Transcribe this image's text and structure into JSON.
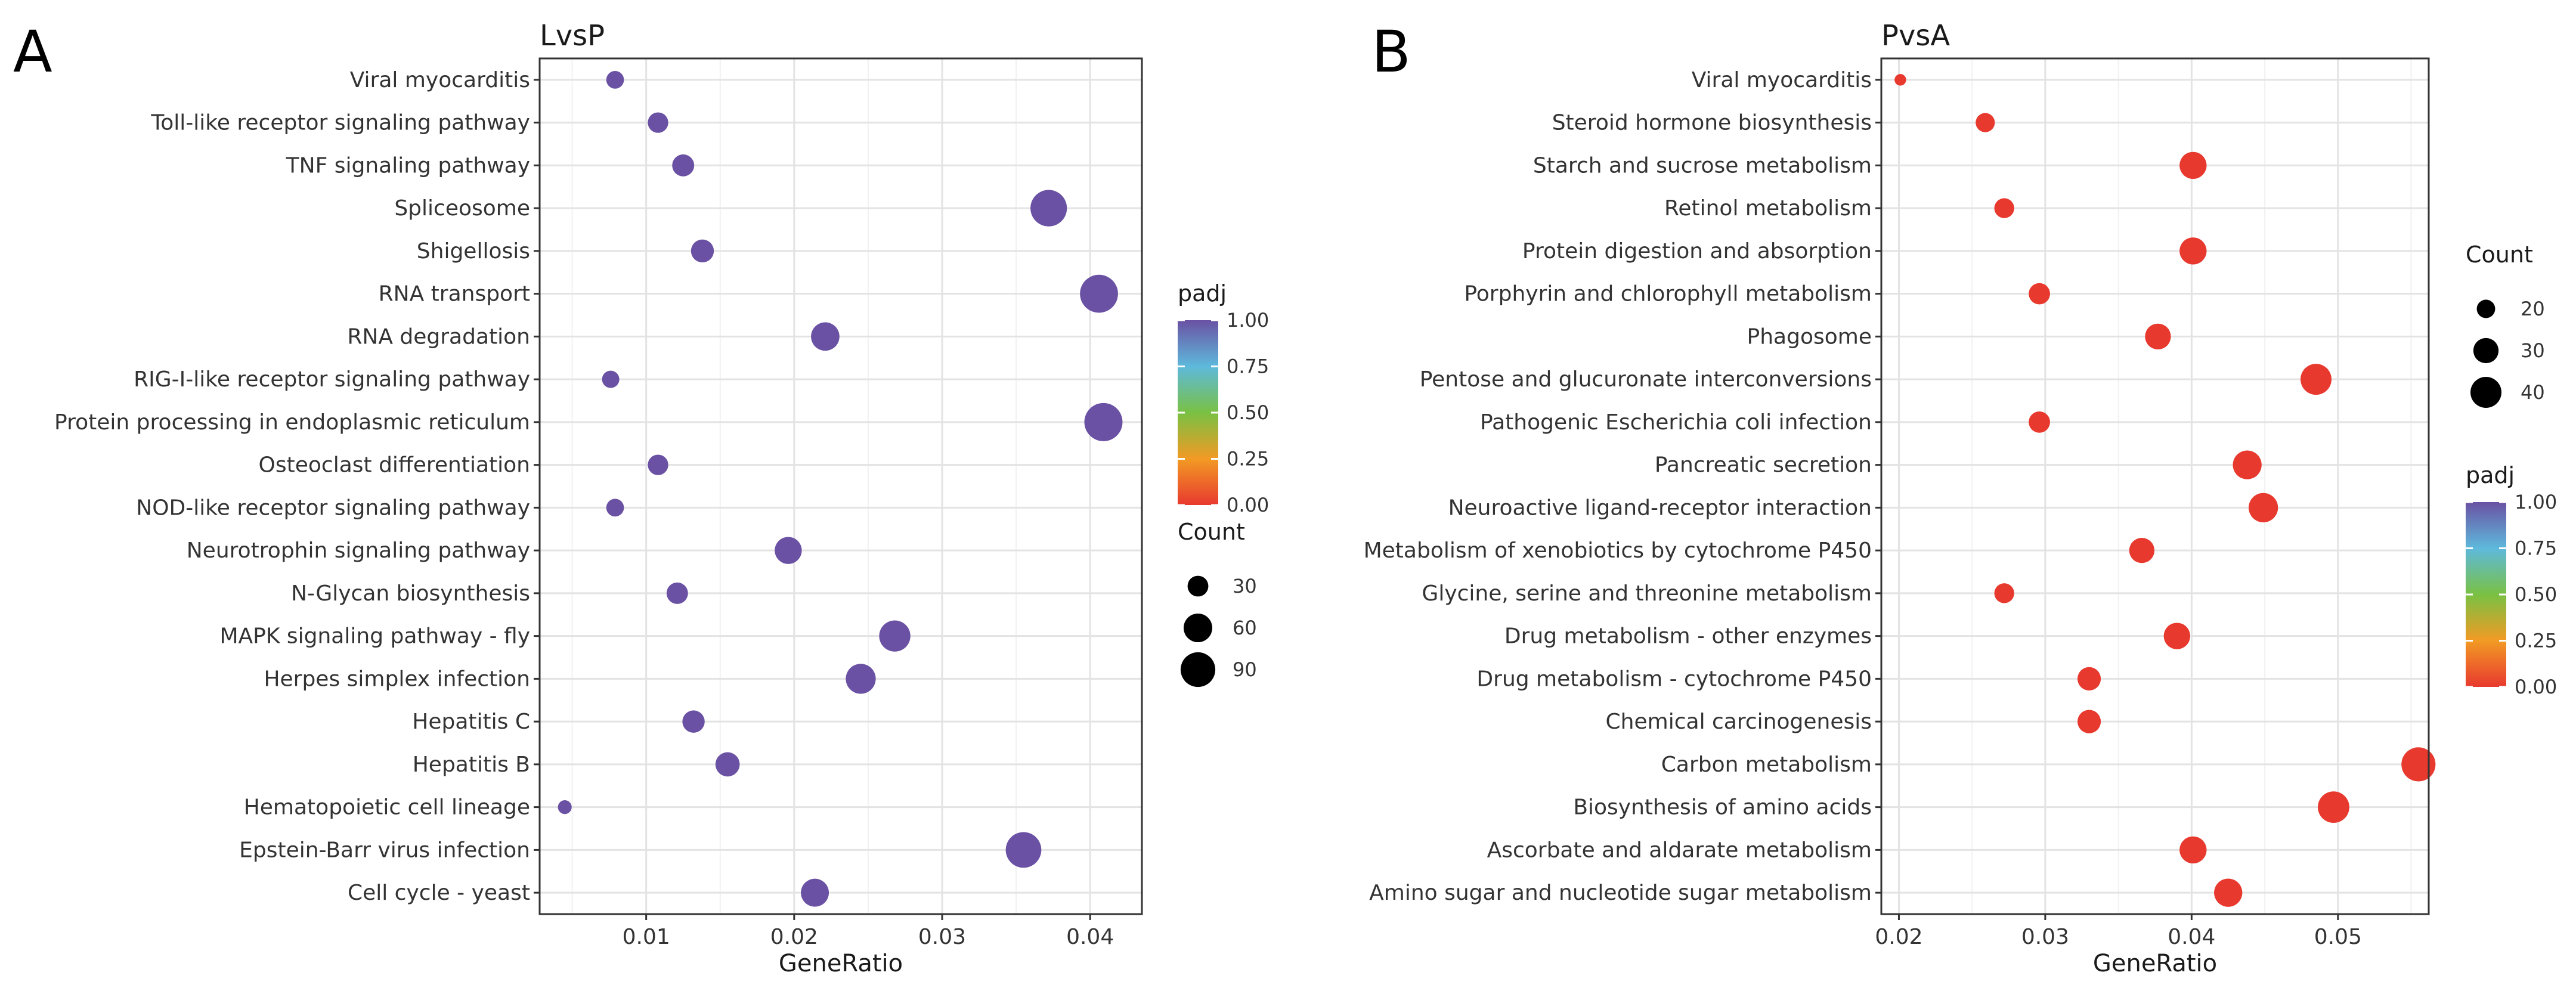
{
  "chart_data": [
    {
      "id": "A",
      "type": "scatter",
      "panel_label": "A",
      "title": "LvsP",
      "xlabel": "GeneRatio",
      "xlim": [
        0.0028,
        0.0435
      ],
      "xticks": [
        0.01,
        0.02,
        0.03,
        0.04
      ],
      "xtick_labels": [
        "0.01",
        "0.02",
        "0.03",
        "0.04"
      ],
      "categories": [
        "Viral myocarditis",
        "Toll-like receptor signaling pathway",
        "TNF signaling pathway",
        "Spliceosome",
        "Shigellosis",
        "RNA transport",
        "RNA degradation",
        "RIG-I-like receptor signaling pathway",
        "Protein processing in endoplasmic reticulum",
        "Osteoclast differentiation",
        "NOD-like receptor signaling pathway",
        "Neurotrophin signaling pathway",
        "N-Glycan biosynthesis",
        "MAPK signaling pathway - fly",
        "Herpes simplex infection",
        "Hepatitis C",
        "Hepatitis B",
        "Hematopoietic cell lineage",
        "Epstein-Barr virus infection",
        "Cell cycle - yeast"
      ],
      "gene_ratio": [
        0.0079,
        0.0108,
        0.0125,
        0.0372,
        0.0138,
        0.0406,
        0.0221,
        0.0076,
        0.0409,
        0.0108,
        0.0079,
        0.0196,
        0.0121,
        0.0268,
        0.0245,
        0.0132,
        0.0155,
        0.0045,
        0.0355,
        0.0214
      ],
      "count": [
        21,
        29,
        34,
        100,
        37,
        109,
        59,
        20,
        110,
        29,
        21,
        53,
        32,
        72,
        66,
        35,
        42,
        12,
        95,
        57
      ],
      "padj": [
        1,
        1,
        1,
        1,
        1,
        1,
        1,
        1,
        1,
        1,
        1,
        1,
        1,
        1,
        1,
        1,
        1,
        1,
        1,
        1
      ],
      "legend_order": [
        "padj",
        "Count"
      ],
      "color_legend": {
        "title": "padj",
        "ticks": [
          1.0,
          0.75,
          0.5,
          0.25,
          0.0
        ],
        "tick_labels": [
          "1.00",
          "0.75",
          "0.50",
          "0.25",
          "0.00"
        ]
      },
      "size_legend": {
        "title": "Count",
        "values": [
          30,
          60,
          90
        ],
        "labels": [
          "30",
          "60",
          "90"
        ]
      },
      "size_range": [
        5,
        110
      ],
      "grid": true
    },
    {
      "id": "B",
      "type": "scatter",
      "panel_label": "B",
      "title": "PvsA",
      "xlabel": "GeneRatio",
      "xlim": [
        0.0188,
        0.0562
      ],
      "xticks": [
        0.02,
        0.03,
        0.04,
        0.05
      ],
      "xtick_labels": [
        "0.02",
        "0.03",
        "0.04",
        "0.05"
      ],
      "categories": [
        "Viral myocarditis",
        "Steroid hormone biosynthesis",
        "Starch and sucrose metabolism",
        "Retinol metabolism",
        "Protein digestion and absorption",
        "Porphyrin and chlorophyll metabolism",
        "Phagosome",
        "Pentose and glucuronate interconversions",
        "Pathogenic Escherichia coli infection",
        "Pancreatic secretion",
        "Neuroactive ligand-receptor interaction",
        "Metabolism of xenobiotics by cytochrome P450",
        "Glycine, serine and threonine metabolism",
        "Drug metabolism - other enzymes",
        "Drug metabolism - cytochrome P450",
        "Chemical carcinogenesis",
        "Carbon metabolism",
        "Biosynthesis of amino acids",
        "Ascorbate and aldarate metabolism",
        "Amino sugar and nucleotide sugar metabolism"
      ],
      "gene_ratio": [
        0.0201,
        0.0259,
        0.0401,
        0.0272,
        0.0401,
        0.0296,
        0.0377,
        0.0485,
        0.0296,
        0.0438,
        0.0449,
        0.0366,
        0.0272,
        0.039,
        0.033,
        0.033,
        0.0555,
        0.0497,
        0.0401,
        0.0425
      ],
      "count": [
        12,
        21,
        33,
        22,
        33,
        24,
        31,
        40,
        24,
        36,
        37,
        30,
        22,
        32,
        27,
        27,
        46,
        41,
        33,
        35
      ],
      "padj": [
        0,
        0,
        0,
        0,
        0,
        0,
        0,
        0,
        0,
        0,
        0,
        0,
        0,
        0,
        0,
        0,
        0,
        0,
        0,
        0
      ],
      "legend_order": [
        "Count",
        "padj"
      ],
      "color_legend": {
        "title": "padj",
        "ticks": [
          1.0,
          0.75,
          0.5,
          0.25,
          0.0
        ],
        "tick_labels": [
          "1.00",
          "0.75",
          "0.50",
          "0.25",
          "0.00"
        ]
      },
      "size_legend": {
        "title": "Count",
        "values": [
          20,
          30,
          40
        ],
        "labels": [
          "20",
          "30",
          "40"
        ]
      },
      "size_range": [
        10,
        47
      ],
      "grid": true
    }
  ],
  "colors": {
    "padj_high": "#6a51a3",
    "padj_mid_high": "#5eb9dc",
    "padj_mid": "#79c143",
    "padj_mid_low": "#f29a24",
    "padj_low": "#e8392f",
    "grid": "#e3e3e3",
    "border": "#333333"
  },
  "colorbar_stops": [
    "#e8392f",
    "#f29a24",
    "#79c143",
    "#5eb9dc",
    "#6a51a3"
  ]
}
